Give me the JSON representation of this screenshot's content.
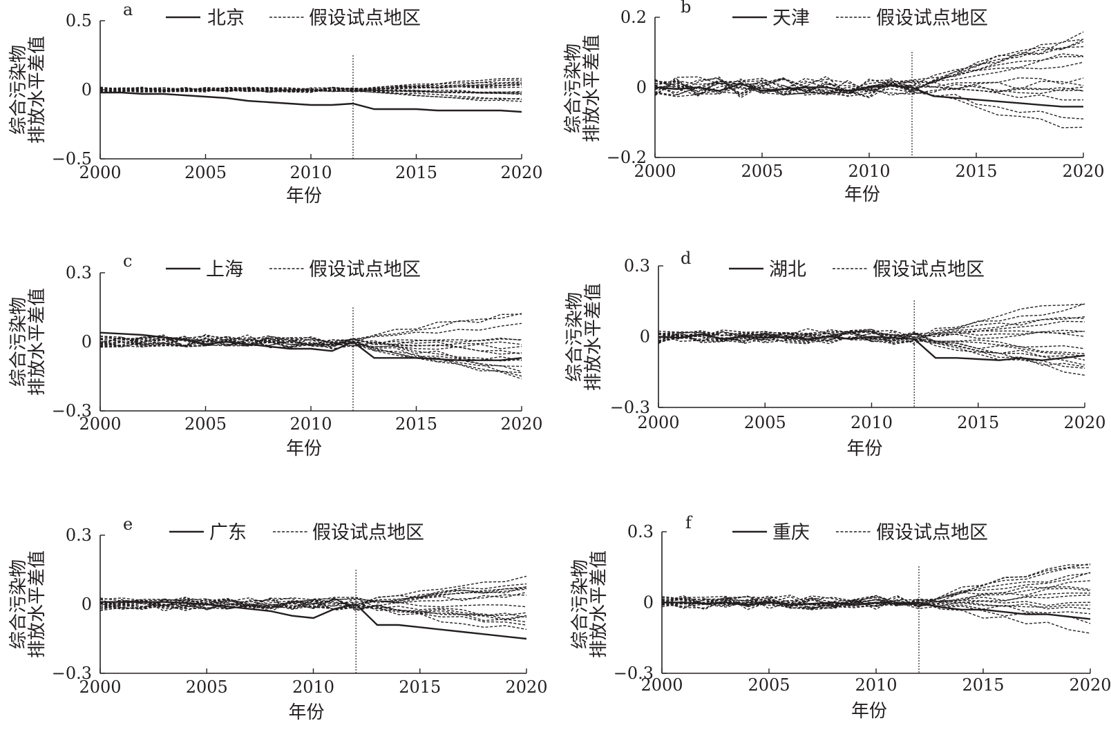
{
  "chart_data": [
    {
      "type": "line",
      "panel_label": "a",
      "ylabel_lines": [
        "综合污染物",
        "排放水平差值"
      ],
      "xlabel": "年份",
      "xlim": [
        2000,
        2020
      ],
      "ylim": [
        -0.5,
        0.5
      ],
      "yticks": [
        0.5,
        0,
        -0.5
      ],
      "ytick_labels": [
        "0.5",
        "0",
        "−0.5"
      ],
      "xticks": [
        2000,
        2005,
        2010,
        2015,
        2020
      ],
      "xtick_labels": [
        "2000",
        "2005",
        "2010",
        "2015",
        "2020"
      ],
      "treatment_year": 2012,
      "legend": {
        "treated": "北京",
        "placebo": "假设试点地区"
      },
      "x": [
        2000,
        2001,
        2002,
        2003,
        2004,
        2005,
        2006,
        2007,
        2008,
        2009,
        2010,
        2011,
        2012,
        2013,
        2014,
        2015,
        2016,
        2017,
        2018,
        2019,
        2020
      ],
      "treated_values": [
        -0.02,
        -0.02,
        -0.03,
        -0.03,
        -0.04,
        -0.05,
        -0.06,
        -0.08,
        -0.09,
        -0.1,
        -0.11,
        -0.11,
        -0.1,
        -0.14,
        -0.14,
        -0.14,
        -0.15,
        -0.15,
        -0.15,
        -0.15,
        -0.16
      ],
      "placebo_amplitude": 0.1,
      "placebo_count": 16
    },
    {
      "type": "line",
      "panel_label": "b",
      "ylabel_lines": [
        "综合污染物",
        "排放水平差值"
      ],
      "xlabel": "年份",
      "xlim": [
        2000,
        2020
      ],
      "ylim": [
        -0.2,
        0.2
      ],
      "yticks": [
        0.2,
        0,
        -0.2
      ],
      "ytick_labels": [
        "0.2",
        "0",
        "−0.2"
      ],
      "xticks": [
        2000,
        2005,
        2010,
        2015,
        2020
      ],
      "xtick_labels": [
        "2000",
        "2005",
        "2010",
        "2015",
        "2020"
      ],
      "treatment_year": 2012,
      "legend": {
        "treated": "天津",
        "placebo": "假设试点地区"
      },
      "x": [
        2000,
        2001,
        2002,
        2003,
        2004,
        2005,
        2006,
        2007,
        2008,
        2009,
        2010,
        2011,
        2012,
        2013,
        2014,
        2015,
        2016,
        2017,
        2018,
        2019,
        2020
      ],
      "treated_values": [
        0.0,
        -0.005,
        0.0,
        -0.01,
        0.01,
        -0.01,
        -0.005,
        0.0,
        0.0,
        -0.01,
        0.0,
        0.005,
        0.0,
        -0.025,
        -0.03,
        -0.035,
        -0.04,
        -0.045,
        -0.05,
        -0.055,
        -0.055
      ],
      "placebo_amplitude": 0.16,
      "placebo_count": 16
    },
    {
      "type": "line",
      "panel_label": "c",
      "ylabel_lines": [
        "综合污染物",
        "排放水平差值"
      ],
      "xlabel": "年份",
      "xlim": [
        2000,
        2020
      ],
      "ylim": [
        -0.3,
        0.3
      ],
      "yticks": [
        0.3,
        0,
        -0.3
      ],
      "ytick_labels": [
        "0.3",
        "0",
        "−0.3"
      ],
      "xticks": [
        2000,
        2005,
        2010,
        2015,
        2020
      ],
      "xtick_labels": [
        "2000",
        "2005",
        "2010",
        "2015",
        "2020"
      ],
      "treatment_year": 2012,
      "legend": {
        "treated": "上海",
        "placebo": "假设试点地区"
      },
      "x": [
        2000,
        2001,
        2002,
        2003,
        2004,
        2005,
        2006,
        2007,
        2008,
        2009,
        2010,
        2011,
        2012,
        2013,
        2014,
        2015,
        2016,
        2017,
        2018,
        2019,
        2020
      ],
      "treated_values": [
        0.04,
        0.035,
        0.03,
        0.02,
        0.01,
        -0.01,
        0.0,
        -0.01,
        -0.02,
        -0.03,
        -0.03,
        -0.04,
        0.0,
        -0.07,
        -0.07,
        -0.07,
        -0.075,
        -0.08,
        -0.08,
        -0.08,
        -0.07
      ],
      "placebo_amplitude": 0.17,
      "placebo_count": 16
    },
    {
      "type": "line",
      "panel_label": "d",
      "ylabel_lines": [
        "综合污染物",
        "排放水平差值"
      ],
      "xlabel": "年份",
      "xlim": [
        2000,
        2020
      ],
      "ylim": [
        -0.3,
        0.3
      ],
      "yticks": [
        0.3,
        0,
        -0.3
      ],
      "ytick_labels": [
        "0.3",
        "0",
        "−0.3"
      ],
      "xticks": [
        2000,
        2005,
        2010,
        2015,
        2020
      ],
      "xtick_labels": [
        "2000",
        "2005",
        "2010",
        "2015",
        "2020"
      ],
      "treatment_year": 2012,
      "legend": {
        "treated": "湖北",
        "placebo": "假设试点地区"
      },
      "x": [
        2000,
        2001,
        2002,
        2003,
        2004,
        2005,
        2006,
        2007,
        2008,
        2009,
        2010,
        2011,
        2012,
        2013,
        2014,
        2015,
        2016,
        2017,
        2018,
        2019,
        2020
      ],
      "treated_values": [
        0.0,
        -0.005,
        0.01,
        -0.01,
        0.0,
        -0.005,
        0.0,
        -0.01,
        0.0,
        -0.01,
        0.0,
        -0.005,
        -0.01,
        -0.09,
        -0.09,
        -0.095,
        -0.1,
        -0.09,
        -0.1,
        -0.09,
        -0.08
      ],
      "placebo_amplitude": 0.17,
      "placebo_count": 16
    },
    {
      "type": "line",
      "panel_label": "e",
      "ylabel_lines": [
        "综合污染物",
        "排放水平差值"
      ],
      "xlabel": "年份",
      "xlim": [
        2000,
        2020
      ],
      "ylim": [
        -0.3,
        0.3
      ],
      "yticks": [
        0.3,
        0,
        -0.3
      ],
      "ytick_labels": [
        "0.3",
        "0",
        "−0.3"
      ],
      "xticks": [
        2000,
        2005,
        2010,
        2015,
        2020
      ],
      "xtick_labels": [
        "2000",
        "2005",
        "2010",
        "2015",
        "2020"
      ],
      "treatment_year": 2012,
      "legend": {
        "treated": "广东",
        "placebo": "假设试点地区"
      },
      "x": [
        2000,
        2001,
        2002,
        2003,
        2004,
        2005,
        2006,
        2007,
        2008,
        2009,
        2010,
        2011,
        2012,
        2013,
        2014,
        2015,
        2016,
        2017,
        2018,
        2019,
        2020
      ],
      "treated_values": [
        0.01,
        0.01,
        0.01,
        0.01,
        0.005,
        0.0,
        -0.01,
        -0.02,
        -0.03,
        -0.05,
        -0.06,
        -0.02,
        0.0,
        -0.09,
        -0.09,
        -0.1,
        -0.11,
        -0.12,
        -0.13,
        -0.14,
        -0.15
      ],
      "placebo_amplitude": 0.17,
      "placebo_count": 16
    },
    {
      "type": "line",
      "panel_label": "f",
      "ylabel_lines": [
        "综合污染物",
        "排放水平差值"
      ],
      "xlabel": "年份",
      "xlim": [
        2000,
        2020
      ],
      "ylim": [
        -0.3,
        0.3
      ],
      "yticks": [
        0.3,
        0,
        -0.3
      ],
      "ytick_labels": [
        "0.3",
        "0",
        "−0.3"
      ],
      "xticks": [
        2000,
        2005,
        2010,
        2015,
        2020
      ],
      "xtick_labels": [
        "2000",
        "2005",
        "2010",
        "2015",
        "2020"
      ],
      "treatment_year": 2012,
      "legend": {
        "treated": "重庆",
        "placebo": "假设试点地区"
      },
      "x": [
        2000,
        2001,
        2002,
        2003,
        2004,
        2005,
        2006,
        2007,
        2008,
        2009,
        2010,
        2011,
        2012,
        2013,
        2014,
        2015,
        2016,
        2017,
        2018,
        2019,
        2020
      ],
      "treated_values": [
        0.0,
        0.0,
        -0.005,
        0.0,
        -0.01,
        0.0,
        -0.01,
        -0.005,
        0.0,
        -0.01,
        0.0,
        -0.005,
        0.0,
        -0.02,
        -0.03,
        -0.03,
        -0.04,
        -0.05,
        -0.05,
        -0.06,
        -0.07
      ],
      "placebo_amplitude": 0.17,
      "placebo_count": 16
    }
  ]
}
